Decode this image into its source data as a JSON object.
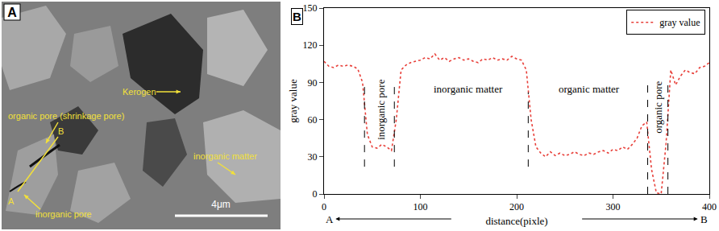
{
  "panel_a": {
    "label": "A",
    "labels": [
      "Kerogen",
      "organic pore (shrinkage pore)",
      "inorganic pore",
      "inorganic matter"
    ],
    "line_ends": [
      "A",
      "B"
    ],
    "scale_bar": "4μm"
  },
  "chart_data": {
    "type": "line",
    "panel": "B",
    "x_label": "distance(pixle)",
    "x_ends": [
      "A",
      "B"
    ],
    "y_label": "gray value",
    "xlim": [
      0,
      400
    ],
    "xticks": [
      0,
      100,
      200,
      300,
      400
    ],
    "ylim": [
      0,
      150
    ],
    "yticks": [
      0,
      30,
      60,
      90,
      120,
      150
    ],
    "legend": "top-right",
    "series": [
      {
        "name": "gray value",
        "color": "#e8403a",
        "line_style": "dot",
        "x": [
          0,
          5,
          10,
          15,
          20,
          25,
          30,
          35,
          40,
          45,
          50,
          55,
          60,
          65,
          70,
          75,
          80,
          85,
          90,
          95,
          100,
          105,
          110,
          115,
          120,
          125,
          130,
          135,
          140,
          145,
          150,
          155,
          160,
          165,
          170,
          175,
          180,
          185,
          190,
          195,
          200,
          205,
          210,
          215,
          220,
          225,
          230,
          235,
          240,
          245,
          250,
          255,
          260,
          265,
          270,
          275,
          280,
          285,
          290,
          295,
          300,
          305,
          310,
          315,
          320,
          325,
          330,
          335,
          340,
          345,
          350,
          355,
          360,
          365,
          370,
          375,
          380,
          385,
          390,
          395,
          400
        ],
        "values": [
          107,
          103,
          102,
          104,
          103,
          104,
          103,
          101,
          90,
          48,
          38,
          37,
          40,
          38,
          35,
          60,
          100,
          104,
          106,
          107,
          108,
          110,
          109,
          113,
          108,
          110,
          107,
          109,
          110,
          108,
          109,
          107,
          106,
          109,
          108,
          110,
          108,
          109,
          108,
          111,
          109,
          108,
          100,
          60,
          38,
          33,
          30,
          34,
          31,
          33,
          31,
          32,
          34,
          32,
          31,
          33,
          32,
          34,
          35,
          33,
          36,
          35,
          38,
          36,
          40,
          45,
          55,
          58,
          20,
          1,
          0,
          40,
          100,
          88,
          95,
          100,
          98,
          97,
          102,
          103,
          106
        ]
      }
    ],
    "annotations": [
      {
        "text": "inorganic pore",
        "x": 59,
        "y": 68,
        "orientation": "vertical"
      },
      {
        "text": "inorganic matter",
        "x": 150,
        "y": 85
      },
      {
        "text": "organic matter",
        "x": 275,
        "y": 85
      },
      {
        "text": "organic pore",
        "x": 347,
        "y": 70,
        "orientation": "vertical"
      }
    ],
    "boundaries": [
      {
        "x": 42,
        "y": [
          22,
          90
        ]
      },
      {
        "x": 73,
        "y": [
          22,
          92
        ]
      },
      {
        "x": 212,
        "y": [
          22,
          82
        ]
      },
      {
        "x": 336,
        "y": [
          0,
          90
        ]
      },
      {
        "x": 357,
        "y": [
          0,
          92
        ]
      }
    ]
  }
}
